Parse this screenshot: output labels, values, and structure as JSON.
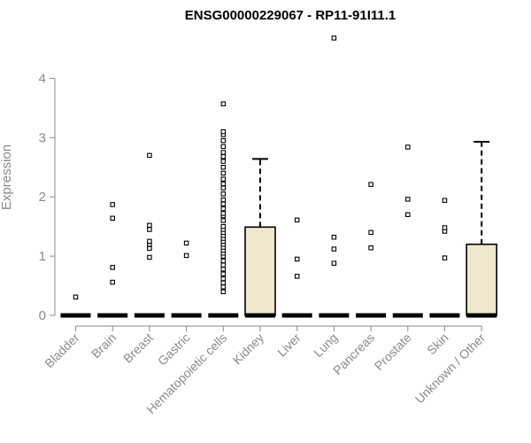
{
  "chart_data": {
    "type": "box",
    "title": "ENSG00000229067 - RP11-91I11.1",
    "xlabel": "",
    "ylabel": "Expression",
    "ylim": [
      0,
      4.7
    ],
    "yticks": [
      0,
      1,
      2,
      3,
      4
    ],
    "box_fill": "#efe8cf",
    "categories": [
      "Bladder",
      "Brain",
      "Breast",
      "Gastric",
      "Hematopoietic cells",
      "Kidney",
      "Liver",
      "Lung",
      "Pancreas",
      "Prostate",
      "Skin",
      "Unknown / Other"
    ],
    "boxes": [
      {
        "q1": 0,
        "median": 0,
        "q3": 0,
        "whisker_low": 0,
        "whisker_high": 0,
        "outliers": [
          0.31
        ]
      },
      {
        "q1": 0,
        "median": 0,
        "q3": 0,
        "whisker_low": 0,
        "whisker_high": 0,
        "outliers": [
          0.56,
          0.81,
          1.64,
          1.87
        ]
      },
      {
        "q1": 0,
        "median": 0,
        "q3": 0,
        "whisker_low": 0,
        "whisker_high": 0,
        "outliers": [
          0.98,
          1.13,
          1.2,
          1.25,
          1.45,
          1.52,
          2.7
        ]
      },
      {
        "q1": 0,
        "median": 0,
        "q3": 0,
        "whisker_low": 0,
        "whisker_high": 0,
        "outliers": [
          1.01,
          1.22
        ]
      },
      {
        "q1": 0,
        "median": 0,
        "q3": 0,
        "whisker_low": 0,
        "whisker_high": 0,
        "outliers": [
          0.4,
          0.48,
          0.55,
          0.62,
          0.7,
          0.78,
          0.85,
          0.92,
          1.0,
          1.05,
          1.1,
          1.15,
          1.2,
          1.25,
          1.3,
          1.35,
          1.4,
          1.45,
          1.5,
          1.6,
          1.68,
          1.72,
          1.8,
          1.88,
          1.95,
          2.05,
          2.15,
          2.22,
          2.3,
          2.4,
          2.5,
          2.6,
          2.68,
          2.75,
          2.85,
          2.95,
          3.05,
          3.1,
          3.57
        ]
      },
      {
        "q1": 0,
        "median": 0,
        "q3": 1.49,
        "whisker_low": 0,
        "whisker_high": 2.64,
        "outliers": []
      },
      {
        "q1": 0,
        "median": 0,
        "q3": 0,
        "whisker_low": 0,
        "whisker_high": 0,
        "outliers": [
          0.66,
          0.95,
          1.61
        ]
      },
      {
        "q1": 0,
        "median": 0,
        "q3": 0,
        "whisker_low": 0,
        "whisker_high": 0,
        "outliers": [
          0.88,
          1.12,
          1.32,
          4.68
        ]
      },
      {
        "q1": 0,
        "median": 0,
        "q3": 0,
        "whisker_low": 0,
        "whisker_high": 0,
        "outliers": [
          1.14,
          1.4,
          2.21
        ]
      },
      {
        "q1": 0,
        "median": 0,
        "q3": 0,
        "whisker_low": 0,
        "whisker_high": 0,
        "outliers": [
          1.7,
          1.96,
          2.84
        ]
      },
      {
        "q1": 0,
        "median": 0,
        "q3": 0,
        "whisker_low": 0,
        "whisker_high": 0,
        "outliers": [
          0.97,
          1.42,
          1.48,
          1.94
        ]
      },
      {
        "q1": 0,
        "median": 0,
        "q3": 1.2,
        "whisker_low": 0,
        "whisker_high": 2.93,
        "outliers": []
      }
    ]
  }
}
